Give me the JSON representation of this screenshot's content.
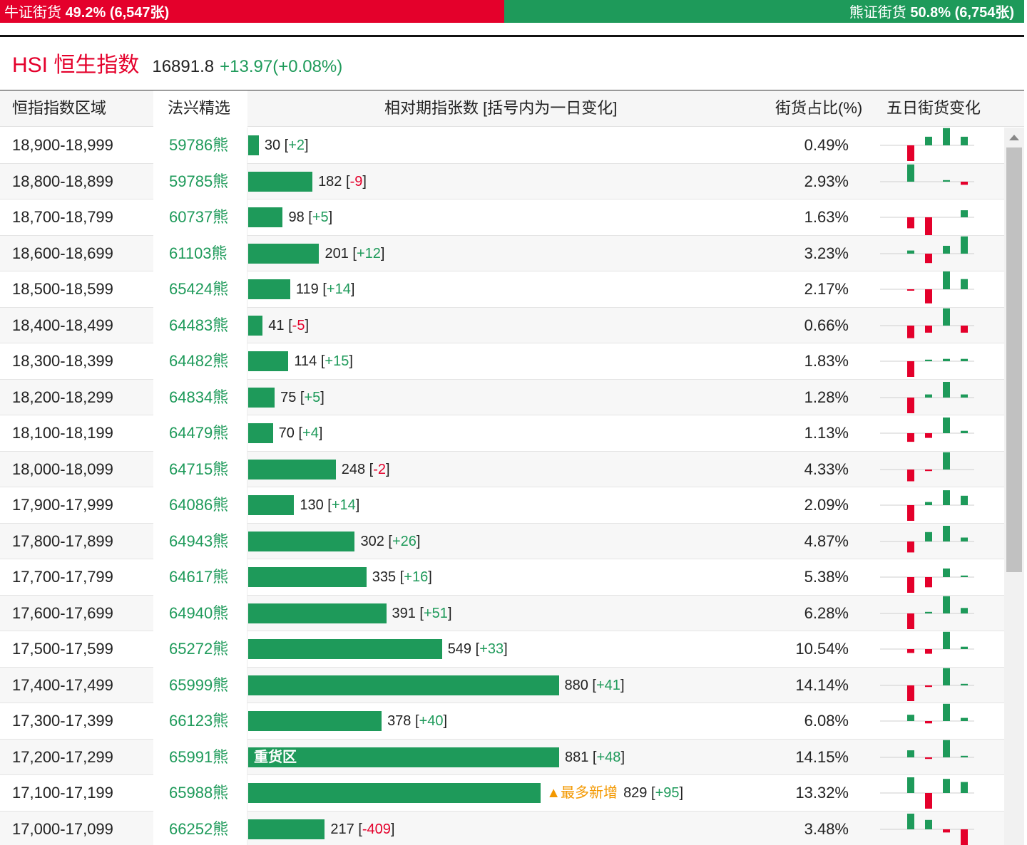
{
  "ratio": {
    "bull_label": "牛证街货",
    "bull_value": "49.2% (6,547张)",
    "bull_fraction": 0.492,
    "bear_label": "熊证街货",
    "bear_value": "50.8% (6,754张)"
  },
  "index": {
    "name": "HSI 恒生指数",
    "price": "16891.8",
    "change": "+13.97(+0.08%)"
  },
  "table": {
    "headers": {
      "range": "恒指指数区域",
      "code": "法兴精选",
      "bar": "相对期指张数 [括号内为一日变化]",
      "pct": "街货占比(%)",
      "spark": "五日街货变化"
    },
    "max_bar": 881,
    "rows": [
      {
        "range": "18,900-18,999",
        "code": "59786熊",
        "value": 30,
        "value_text": "30",
        "change": "+2",
        "pct": "0.49%",
        "label": "",
        "tag": "",
        "spark": [
          0,
          -1.0,
          0.55,
          1.1,
          0.55
        ]
      },
      {
        "range": "18,800-18,899",
        "code": "59785熊",
        "value": 182,
        "value_text": "182",
        "change": "-9",
        "pct": "2.93%",
        "label": "",
        "tag": "",
        "spark": [
          0,
          1.1,
          0,
          0.1,
          -0.2
        ]
      },
      {
        "range": "18,700-18,799",
        "code": "60737熊",
        "value": 98,
        "value_text": "98",
        "change": "+5",
        "pct": "1.63%",
        "label": "",
        "tag": "",
        "spark": [
          0,
          -0.7,
          -1.15,
          0,
          0.45
        ]
      },
      {
        "range": "18,600-18,699",
        "code": "61103熊",
        "value": 201,
        "value_text": "201",
        "change": "+12",
        "pct": "3.23%",
        "label": "",
        "tag": "",
        "spark": [
          0,
          0.2,
          -0.6,
          0.5,
          1.1
        ]
      },
      {
        "range": "18,500-18,599",
        "code": "65424熊",
        "value": 119,
        "value_text": "119",
        "change": "+14",
        "pct": "2.17%",
        "label": "",
        "tag": "",
        "spark": [
          0,
          -0.05,
          -0.9,
          1.2,
          0.65
        ]
      },
      {
        "range": "18,400-18,499",
        "code": "64483熊",
        "value": 41,
        "value_text": "41",
        "change": "-5",
        "pct": "0.66%",
        "label": "",
        "tag": "",
        "spark": [
          0,
          -0.8,
          -0.45,
          1.1,
          -0.45
        ]
      },
      {
        "range": "18,300-18,399",
        "code": "64482熊",
        "value": 114,
        "value_text": "114",
        "change": "+15",
        "pct": "1.83%",
        "label": "",
        "tag": "",
        "spark": [
          0,
          -1.0,
          0.1,
          0.15,
          0.15
        ]
      },
      {
        "range": "18,200-18,299",
        "code": "64834熊",
        "value": 75,
        "value_text": "75",
        "change": "+5",
        "pct": "1.28%",
        "label": "",
        "tag": "",
        "spark": [
          0,
          -1.0,
          0.2,
          1.0,
          0.2
        ]
      },
      {
        "range": "18,100-18,199",
        "code": "64479熊",
        "value": 70,
        "value_text": "70",
        "change": "+4",
        "pct": "1.13%",
        "label": "",
        "tag": "",
        "spark": [
          0,
          -0.55,
          -0.3,
          1.0,
          0.15
        ]
      },
      {
        "range": "18,000-18,099",
        "code": "64715熊",
        "value": 248,
        "value_text": "248",
        "change": "-2",
        "pct": "4.33%",
        "label": "",
        "tag": "",
        "spark": [
          0,
          -0.75,
          -0.1,
          1.1,
          0
        ]
      },
      {
        "range": "17,900-17,999",
        "code": "64086熊",
        "value": 130,
        "value_text": "130",
        "change": "+14",
        "pct": "2.09%",
        "label": "",
        "tag": "",
        "spark": [
          0,
          -1.0,
          0.2,
          0.95,
          0.6
        ]
      },
      {
        "range": "17,800-17,899",
        "code": "64943熊",
        "value": 302,
        "value_text": "302",
        "change": "+26",
        "pct": "4.87%",
        "label": "",
        "tag": "",
        "spark": [
          0,
          -0.7,
          0.6,
          1.0,
          0.25
        ]
      },
      {
        "range": "17,700-17,799",
        "code": "64617熊",
        "value": 335,
        "value_text": "335",
        "change": "+16",
        "pct": "5.38%",
        "label": "",
        "tag": "",
        "spark": [
          0,
          -1.0,
          -0.65,
          0.55,
          0.1
        ]
      },
      {
        "range": "17,600-17,699",
        "code": "64940熊",
        "value": 391,
        "value_text": "391",
        "change": "+51",
        "pct": "6.28%",
        "label": "",
        "tag": "",
        "spark": [
          0,
          -1.0,
          0.1,
          1.1,
          0.35
        ]
      },
      {
        "range": "17,500-17,599",
        "code": "65272熊",
        "value": 549,
        "value_text": "549",
        "change": "+33",
        "pct": "10.54%",
        "label": "",
        "tag": "",
        "spark": [
          0,
          -0.25,
          -0.3,
          1.1,
          0.15
        ]
      },
      {
        "range": "17,400-17,499",
        "code": "65999熊",
        "value": 880,
        "value_text": "880",
        "change": "+41",
        "pct": "14.14%",
        "label": "",
        "tag": "",
        "spark": [
          0,
          -1.0,
          -0.1,
          1.1,
          0.1
        ]
      },
      {
        "range": "17,300-17,399",
        "code": "66123熊",
        "value": 378,
        "value_text": "378",
        "change": "+40",
        "pct": "6.08%",
        "label": "",
        "tag": "",
        "spark": [
          0,
          0.4,
          -0.15,
          1.1,
          0.2
        ]
      },
      {
        "range": "17,200-17,299",
        "code": "65991熊",
        "value": 881,
        "value_text": "881",
        "change": "+48",
        "pct": "14.15%",
        "label": "重货区",
        "tag": "",
        "spark": [
          0,
          0.45,
          -0.1,
          1.1,
          0.1
        ]
      },
      {
        "range": "17,100-17,199",
        "code": "65988熊",
        "value": 829,
        "value_text": "829",
        "change": "+95",
        "pct": "13.32%",
        "label": "",
        "tag": "▲最多新增",
        "spark": [
          0,
          1.0,
          -1.0,
          0.9,
          0.7
        ]
      },
      {
        "range": "17,000-17,099",
        "code": "66252熊",
        "value": 217,
        "value_text": "217",
        "change": "-409",
        "pct": "3.48%",
        "label": "",
        "tag": "",
        "spark": [
          0,
          1.0,
          0.6,
          -0.2,
          -1.0
        ]
      }
    ]
  },
  "colors": {
    "bull_red": "#e4002b",
    "bear_green": "#1e9a5a",
    "tag_orange": "#f39800"
  }
}
